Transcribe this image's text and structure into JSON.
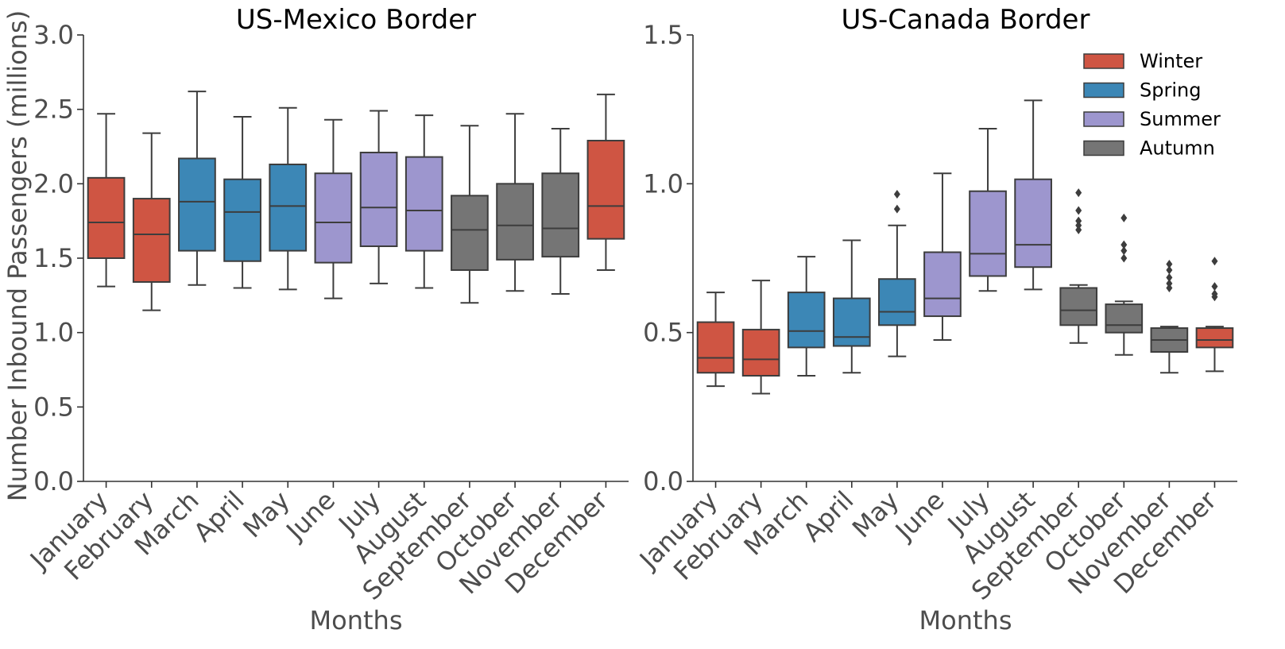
{
  "colors": {
    "Winter": "#cf5543",
    "Spring": "#3c87b6",
    "Summer": "#9d96ce",
    "Autumn": "#757575",
    "line": "#3d3d3d"
  },
  "chart_data": [
    {
      "type": "box",
      "title": "US-Mexico Border",
      "xlabel": "Months",
      "ylabel": "Number Inbound Passengers (millions)",
      "ylim": [
        0,
        3.0
      ],
      "yticks": [
        "0.0",
        "0.5",
        "1.0",
        "1.5",
        "2.0",
        "2.5",
        "3.0"
      ],
      "categories": [
        "January",
        "February",
        "March",
        "April",
        "May",
        "June",
        "July",
        "August",
        "September",
        "October",
        "November",
        "December"
      ],
      "seasons": [
        "Winter",
        "Winter",
        "Spring",
        "Spring",
        "Spring",
        "Summer",
        "Summer",
        "Summer",
        "Autumn",
        "Autumn",
        "Autumn",
        "Winter"
      ],
      "boxes": [
        {
          "whislo": 1.31,
          "q1": 1.5,
          "med": 1.74,
          "q3": 2.04,
          "whishi": 2.47,
          "fliers": []
        },
        {
          "whislo": 1.15,
          "q1": 1.34,
          "med": 1.66,
          "q3": 1.9,
          "whishi": 2.34,
          "fliers": []
        },
        {
          "whislo": 1.32,
          "q1": 1.55,
          "med": 1.88,
          "q3": 2.17,
          "whishi": 2.62,
          "fliers": []
        },
        {
          "whislo": 1.3,
          "q1": 1.48,
          "med": 1.81,
          "q3": 2.03,
          "whishi": 2.45,
          "fliers": []
        },
        {
          "whislo": 1.29,
          "q1": 1.55,
          "med": 1.85,
          "q3": 2.13,
          "whishi": 2.51,
          "fliers": []
        },
        {
          "whislo": 1.23,
          "q1": 1.47,
          "med": 1.74,
          "q3": 2.07,
          "whishi": 2.43,
          "fliers": []
        },
        {
          "whislo": 1.33,
          "q1": 1.58,
          "med": 1.84,
          "q3": 2.21,
          "whishi": 2.49,
          "fliers": []
        },
        {
          "whislo": 1.3,
          "q1": 1.55,
          "med": 1.82,
          "q3": 2.18,
          "whishi": 2.46,
          "fliers": []
        },
        {
          "whislo": 1.2,
          "q1": 1.42,
          "med": 1.69,
          "q3": 1.92,
          "whishi": 2.39,
          "fliers": []
        },
        {
          "whislo": 1.28,
          "q1": 1.49,
          "med": 1.72,
          "q3": 2.0,
          "whishi": 2.47,
          "fliers": []
        },
        {
          "whislo": 1.26,
          "q1": 1.51,
          "med": 1.7,
          "q3": 2.07,
          "whishi": 2.37,
          "fliers": []
        },
        {
          "whislo": 1.42,
          "q1": 1.63,
          "med": 1.85,
          "q3": 2.29,
          "whishi": 2.6,
          "fliers": []
        }
      ]
    },
    {
      "type": "box",
      "title": "US-Canada Border",
      "xlabel": "Months",
      "ylabel": "",
      "ylim": [
        0,
        1.5
      ],
      "yticks": [
        "0.0",
        "0.5",
        "1.0",
        "1.5"
      ],
      "categories": [
        "January",
        "February",
        "March",
        "April",
        "May",
        "June",
        "July",
        "August",
        "September",
        "October",
        "November",
        "December"
      ],
      "seasons": [
        "Winter",
        "Winter",
        "Spring",
        "Spring",
        "Spring",
        "Summer",
        "Summer",
        "Summer",
        "Autumn",
        "Autumn",
        "Autumn",
        "Winter"
      ],
      "legend": {
        "position": "top-right",
        "entries": [
          "Winter",
          "Spring",
          "Summer",
          "Autumn"
        ]
      },
      "boxes": [
        {
          "whislo": 0.32,
          "q1": 0.365,
          "med": 0.415,
          "q3": 0.535,
          "whishi": 0.635,
          "fliers": []
        },
        {
          "whislo": 0.295,
          "q1": 0.355,
          "med": 0.41,
          "q3": 0.51,
          "whishi": 0.675,
          "fliers": []
        },
        {
          "whislo": 0.355,
          "q1": 0.45,
          "med": 0.505,
          "q3": 0.635,
          "whishi": 0.755,
          "fliers": []
        },
        {
          "whislo": 0.365,
          "q1": 0.455,
          "med": 0.485,
          "q3": 0.615,
          "whishi": 0.81,
          "fliers": []
        },
        {
          "whislo": 0.42,
          "q1": 0.525,
          "med": 0.57,
          "q3": 0.68,
          "whishi": 0.86,
          "fliers": [
            0.915,
            0.965
          ]
        },
        {
          "whislo": 0.475,
          "q1": 0.555,
          "med": 0.615,
          "q3": 0.77,
          "whishi": 1.035,
          "fliers": []
        },
        {
          "whislo": 0.64,
          "q1": 0.69,
          "med": 0.765,
          "q3": 0.975,
          "whishi": 1.185,
          "fliers": []
        },
        {
          "whislo": 0.645,
          "q1": 0.72,
          "med": 0.795,
          "q3": 1.015,
          "whishi": 1.28,
          "fliers": []
        },
        {
          "whislo": 0.465,
          "q1": 0.525,
          "med": 0.575,
          "q3": 0.65,
          "whishi": 0.66,
          "fliers": [
            0.845,
            0.86,
            0.875,
            0.91,
            0.97
          ]
        },
        {
          "whislo": 0.425,
          "q1": 0.5,
          "med": 0.525,
          "q3": 0.595,
          "whishi": 0.605,
          "fliers": [
            0.75,
            0.775,
            0.795,
            0.885
          ]
        },
        {
          "whislo": 0.365,
          "q1": 0.435,
          "med": 0.475,
          "q3": 0.515,
          "whishi": 0.52,
          "fliers": [
            0.65,
            0.665,
            0.685,
            0.71,
            0.73
          ]
        },
        {
          "whislo": 0.37,
          "q1": 0.45,
          "med": 0.475,
          "q3": 0.515,
          "whishi": 0.52,
          "fliers": [
            0.62,
            0.63,
            0.655,
            0.74
          ]
        }
      ]
    }
  ]
}
